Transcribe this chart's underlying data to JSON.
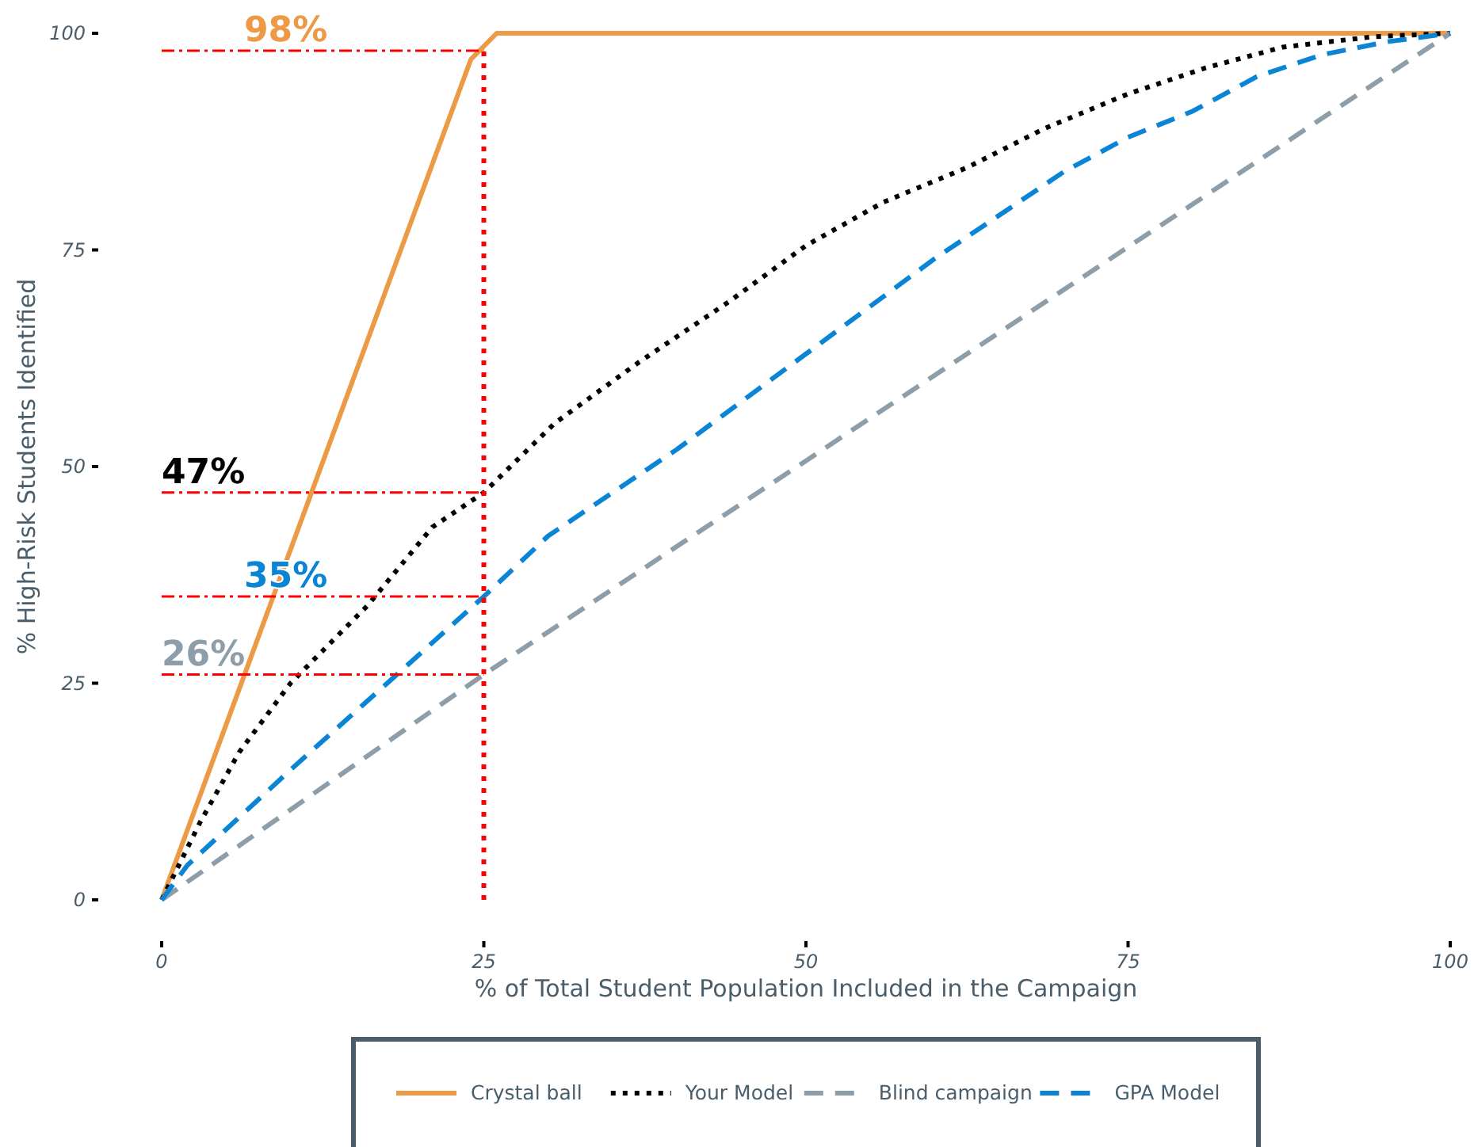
{
  "chart_data": {
    "type": "line",
    "xlabel": "% of Total Student Population Included in the Campaign",
    "ylabel": "% High-Risk Students Identified",
    "xlim": [
      0,
      100
    ],
    "ylim": [
      0,
      100
    ],
    "xticks": [
      0,
      25,
      50,
      75,
      100
    ],
    "yticks": [
      0,
      25,
      50,
      75,
      100
    ],
    "grid": false,
    "legend": "bottom",
    "marker": "none",
    "series": [
      {
        "name": "Crystal ball",
        "color": "#ec9a45",
        "line_style": "solid",
        "x": [
          0,
          24,
          26,
          100
        ],
        "values": [
          0,
          97,
          100,
          100
        ]
      },
      {
        "name": "Your Model",
        "color": "#000000",
        "line_style": "dotted",
        "x": [
          0,
          3,
          6,
          10,
          16,
          21,
          25,
          30.5,
          37,
          44,
          50,
          56,
          62.5,
          68.5,
          75,
          81,
          87,
          94,
          100
        ],
        "values": [
          0,
          9,
          17,
          25,
          34,
          43,
          47,
          55,
          62,
          69,
          75.5,
          80.5,
          84.5,
          89,
          93,
          96,
          98.4,
          99.6,
          100
        ]
      },
      {
        "name": "Blind campaign",
        "color": "#8d9ea9",
        "line_style": "dashed",
        "x": [
          0,
          25,
          100
        ],
        "values": [
          0,
          26,
          100
        ]
      },
      {
        "name": "GPA Model",
        "color": "#0a85d6",
        "line_style": "dashed",
        "x": [
          0,
          2,
          10,
          25,
          30,
          40,
          50,
          60,
          70,
          75,
          80,
          85,
          90,
          95,
          100
        ],
        "values": [
          0,
          4,
          15,
          35,
          42,
          52,
          63,
          74,
          84,
          88,
          91,
          95,
          97.5,
          99,
          100
        ]
      },
      {
        "color": "#ff0000",
        "line_style": "dashdot",
        "x": [
          0,
          25
        ],
        "values": [
          98,
          98
        ]
      },
      {
        "color": "#ff0000",
        "line_style": "dashdot",
        "x": [
          0,
          25
        ],
        "values": [
          47,
          47
        ]
      },
      {
        "color": "#ff0000",
        "line_style": "dashdot",
        "x": [
          0,
          25
        ],
        "values": [
          35,
          35
        ]
      },
      {
        "color": "#ff0000",
        "line_style": "dashdot",
        "x": [
          0,
          25
        ],
        "values": [
          26,
          26
        ]
      },
      {
        "color": "#ff0000",
        "line_style": "dotted",
        "x": [
          25,
          25
        ],
        "values": [
          0,
          98
        ]
      }
    ],
    "annotations": [
      "98%",
      "47%",
      "35%",
      "26%"
    ]
  }
}
